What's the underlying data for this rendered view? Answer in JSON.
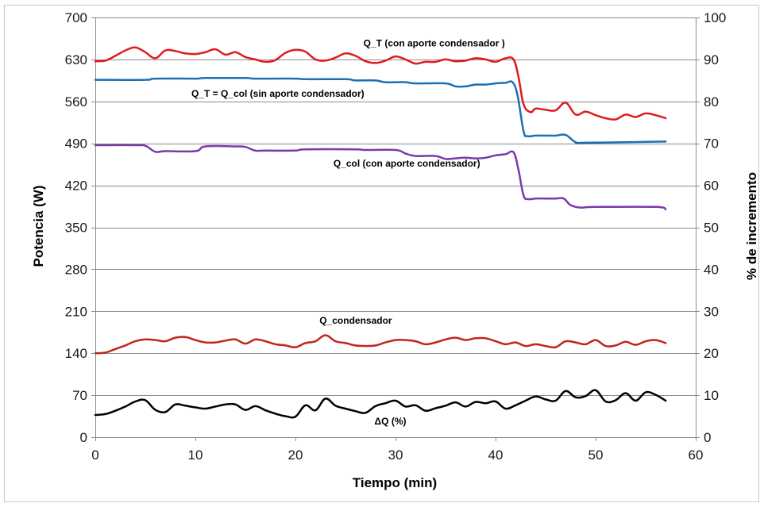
{
  "chart_data": {
    "type": "line",
    "xlabel": "Tiempo (min)",
    "ylabel": "Potencia (W)",
    "y2label": "% de incremento",
    "xlim": [
      0,
      60
    ],
    "ylim": [
      0,
      700
    ],
    "y2lim": [
      0,
      100
    ],
    "xticks": [
      "0",
      "10",
      "20",
      "30",
      "40",
      "50",
      "60"
    ],
    "yticks": [
      "0",
      "70",
      "140",
      "210",
      "280",
      "350",
      "420",
      "490",
      "560",
      "630",
      "700"
    ],
    "y2ticks": [
      "0",
      "10",
      "20",
      "30",
      "40",
      "50",
      "60",
      "70",
      "80",
      "90",
      "100"
    ],
    "grid": "horizontal",
    "series": [
      {
        "name": "Q_T  (con aporte condensador )",
        "color": "#e01b1b",
        "axis": "left",
        "x": [
          0,
          1,
          2,
          3,
          4,
          5,
          6,
          7,
          8,
          9,
          10,
          11,
          12,
          13,
          14,
          15,
          16,
          17,
          18,
          19,
          20,
          21,
          22,
          23,
          24,
          25,
          26,
          27,
          28,
          29,
          30,
          31,
          32,
          33,
          34,
          35,
          36,
          37,
          38,
          39,
          40,
          41,
          41.8,
          42.3,
          42.8,
          43.5,
          44,
          45,
          46,
          47,
          48,
          49,
          50,
          51,
          52,
          53,
          54,
          55,
          56,
          57
        ],
        "values": [
          627,
          628,
          636,
          645,
          650,
          642,
          632,
          645,
          644,
          640,
          639,
          642,
          647,
          638,
          642,
          634,
          630,
          626,
          629,
          641,
          646,
          643,
          630,
          628,
          633,
          640,
          636,
          627,
          624,
          628,
          635,
          630,
          623,
          626,
          626,
          630,
          627,
          628,
          632,
          630,
          626,
          632,
          630,
          600,
          555,
          542,
          548,
          546,
          545,
          558,
          538,
          543,
          537,
          532,
          530,
          538,
          534,
          540,
          537,
          532
        ]
      },
      {
        "name": "Q_T  = Q_col  (sin aporte condensador)",
        "color": "#1b6fb5",
        "axis": "left",
        "x": [
          0,
          5,
          6,
          10,
          11,
          15,
          16,
          20,
          21,
          25,
          26,
          28,
          29,
          31,
          32,
          35,
          36,
          37,
          38,
          39,
          40,
          41,
          41.7,
          42.2,
          42.8,
          43.2,
          44,
          45,
          46,
          47,
          48,
          49,
          57
        ],
        "values": [
          596,
          596,
          598,
          598,
          599,
          599,
          598,
          598,
          597,
          597,
          595,
          595,
          592,
          592,
          590,
          590,
          585,
          585,
          588,
          588,
          590,
          591,
          592,
          570,
          510,
          502,
          503,
          503,
          503,
          504,
          492,
          491,
          493
        ]
      },
      {
        "name": "Q_col  (con aporte condensador)",
        "color": "#7a3aa8",
        "axis": "left",
        "x": [
          0,
          4,
          5,
          6,
          7,
          10,
          11,
          14,
          15,
          16,
          17,
          20,
          21,
          26,
          27,
          30,
          31,
          32,
          34,
          35,
          36,
          37,
          38,
          39,
          40,
          41,
          41.8,
          42.3,
          42.8,
          43.3,
          44,
          45,
          46,
          46.8,
          47.5,
          48.5,
          50,
          56,
          57
        ],
        "values": [
          487,
          487,
          486,
          476,
          477,
          477,
          485,
          485,
          484,
          478,
          478,
          478,
          480,
          480,
          479,
          479,
          473,
          469,
          469,
          464,
          465,
          466,
          465,
          466,
          470,
          472,
          475,
          445,
          403,
          397,
          398,
          398,
          398,
          398,
          387,
          383,
          384,
          384,
          380
        ]
      },
      {
        "name": "Q_condensador",
        "color": "#c0251e",
        "axis": "left",
        "x": [
          0,
          1,
          2,
          3,
          4,
          5,
          6,
          7,
          8,
          9,
          10,
          11,
          12,
          13,
          14,
          15,
          16,
          17,
          18,
          19,
          20,
          21,
          22,
          23,
          24,
          25,
          26,
          27,
          28,
          29,
          30,
          31,
          32,
          33,
          34,
          35,
          36,
          37,
          38,
          39,
          40,
          41,
          42,
          43,
          44,
          45,
          46,
          47,
          48,
          49,
          50,
          51,
          52,
          53,
          54,
          55,
          56,
          57
        ],
        "values": [
          140,
          141,
          147,
          153,
          160,
          163,
          162,
          160,
          166,
          167,
          162,
          158,
          158,
          161,
          163,
          156,
          163,
          160,
          155,
          153,
          150,
          157,
          160,
          170,
          160,
          157,
          153,
          152,
          153,
          158,
          162,
          162,
          160,
          155,
          158,
          163,
          166,
          162,
          165,
          165,
          160,
          155,
          158,
          152,
          155,
          152,
          150,
          160,
          158,
          155,
          162,
          152,
          153,
          159,
          154,
          160,
          162,
          157
        ]
      },
      {
        "name": "ΔQ (%)",
        "color": "#000000",
        "axis": "right",
        "x": [
          0,
          1,
          2,
          3,
          4,
          5,
          6,
          7,
          8,
          9,
          10,
          11,
          12,
          13,
          14,
          15,
          16,
          17,
          18,
          19,
          20,
          21,
          22,
          23,
          24,
          25,
          26,
          27,
          28,
          29,
          30,
          31,
          32,
          33,
          34,
          35,
          36,
          37,
          38,
          39,
          40,
          41,
          42,
          43,
          44,
          45,
          46,
          47,
          48,
          49,
          50,
          51,
          52,
          53,
          54,
          55,
          56,
          57
        ],
        "values": [
          5.3,
          5.5,
          6.3,
          7.3,
          8.5,
          8.8,
          6.5,
          6.0,
          7.8,
          7.5,
          7.1,
          6.8,
          7.3,
          7.8,
          7.8,
          6.5,
          7.4,
          6.4,
          5.6,
          5.0,
          4.9,
          7.6,
          6.4,
          9.2,
          7.5,
          6.8,
          6.2,
          5.8,
          7.4,
          8.1,
          8.7,
          7.3,
          7.6,
          6.3,
          6.9,
          7.5,
          8.3,
          7.3,
          8.4,
          8.1,
          8.5,
          6.8,
          7.6,
          8.7,
          9.7,
          9.0,
          8.7,
          11.0,
          9.5,
          9.8,
          11.2,
          8.5,
          8.8,
          10.5,
          8.7,
          10.7,
          10.1,
          8.7
        ]
      }
    ],
    "annotations": [
      {
        "text": "Q_T  (con aporte condensador )",
        "x": 26.8,
        "y": 652
      },
      {
        "text": "Q_T  = Q_col  (sin aporte condensador)",
        "x": 9.6,
        "y": 568
      },
      {
        "text": "Q_col  (con aporte condensador)",
        "x": 23.8,
        "y": 451
      },
      {
        "text": "Q_condensador",
        "x": 22.4,
        "y": 189
      },
      {
        "text": "ΔQ (%)",
        "x": 27.9,
        "y": 21
      }
    ]
  }
}
